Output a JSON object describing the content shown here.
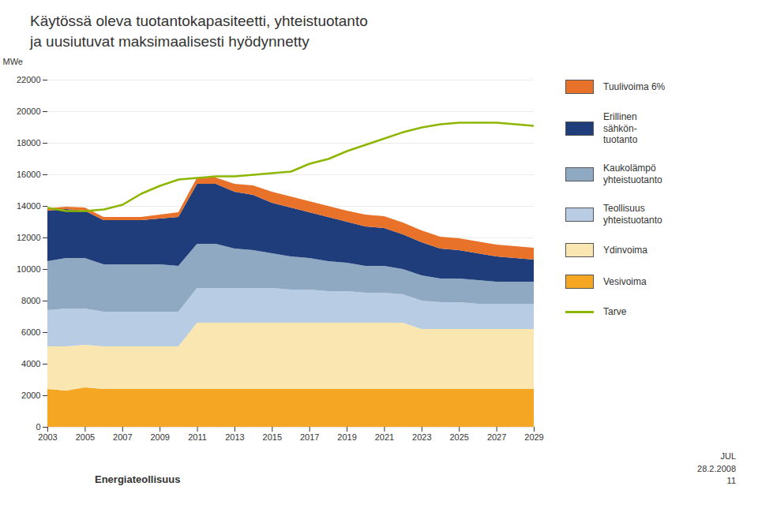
{
  "chart_data": {
    "type": "area",
    "title": "Käytössä oleva tuotantokapasiteetti, yhteistuotanto\nja uusiutuvat maksimaalisesti hyödynnetty",
    "ylabel": "MWe",
    "x": [
      2003,
      2004,
      2005,
      2006,
      2007,
      2008,
      2009,
      2010,
      2011,
      2012,
      2013,
      2014,
      2015,
      2016,
      2017,
      2018,
      2019,
      2020,
      2021,
      2022,
      2023,
      2024,
      2025,
      2026,
      2027,
      2028,
      2029
    ],
    "series": [
      {
        "name": "Vesivoima",
        "color": "#F5A623",
        "values": [
          2400,
          2300,
          2500,
          2400,
          2400,
          2400,
          2400,
          2400,
          2400,
          2400,
          2400,
          2400,
          2400,
          2400,
          2400,
          2400,
          2400,
          2400,
          2400,
          2400,
          2400,
          2400,
          2400,
          2400,
          2400,
          2400,
          2400
        ]
      },
      {
        "name": "Ydinvoima",
        "color": "#FAE6B0",
        "values": [
          2700,
          2800,
          2700,
          2700,
          2700,
          2700,
          2700,
          2700,
          4200,
          4200,
          4200,
          4200,
          4200,
          4200,
          4200,
          4200,
          4200,
          4200,
          4200,
          4200,
          3800,
          3800,
          3800,
          3800,
          3800,
          3800,
          3800
        ]
      },
      {
        "name": "Teollisuus\nyhteistuotanto",
        "color": "#B8CCE4",
        "values": [
          2300,
          2400,
          2300,
          2200,
          2200,
          2200,
          2200,
          2200,
          2200,
          2200,
          2200,
          2200,
          2200,
          2100,
          2100,
          2000,
          2000,
          1900,
          1900,
          1800,
          1800,
          1700,
          1700,
          1600,
          1600,
          1600,
          1600
        ]
      },
      {
        "name": "Kaukolämpö\nyhteistuotanto",
        "color": "#8EA9C1",
        "values": [
          3100,
          3200,
          3200,
          3000,
          3000,
          3000,
          3000,
          2900,
          2800,
          2800,
          2500,
          2400,
          2200,
          2100,
          2000,
          1900,
          1800,
          1700,
          1700,
          1600,
          1600,
          1500,
          1500,
          1500,
          1400,
          1400,
          1400
        ]
      },
      {
        "name": "Erillinen\nsähkön-\ntuotanto",
        "color": "#1F3D7A",
        "values": [
          3200,
          3100,
          3000,
          2800,
          2800,
          2800,
          2900,
          3100,
          3800,
          3800,
          3600,
          3500,
          3200,
          3100,
          2900,
          2800,
          2600,
          2500,
          2400,
          2200,
          2100,
          1900,
          1800,
          1700,
          1600,
          1500,
          1400
        ]
      },
      {
        "name": "Tuulivoima 6%",
        "color": "#E8722A",
        "values": [
          150,
          150,
          200,
          200,
          200,
          200,
          250,
          300,
          400,
          400,
          500,
          600,
          700,
          700,
          700,
          700,
          700,
          750,
          750,
          750,
          750,
          750,
          750,
          750,
          750,
          750,
          750
        ]
      },
      {
        "name": "Tarve",
        "type": "line",
        "color": "#8DB600",
        "values": [
          13900,
          13700,
          13700,
          13800,
          14100,
          14800,
          15300,
          15700,
          15800,
          15900,
          15900,
          16000,
          16100,
          16200,
          16700,
          17000,
          17500,
          17900,
          18300,
          18700,
          19000,
          19200,
          19300,
          19300,
          19300,
          19200,
          19100
        ]
      }
    ],
    "stacked": true,
    "xlim": [
      2003,
      2029
    ],
    "xticks": [
      2003,
      2005,
      2007,
      2009,
      2011,
      2013,
      2015,
      2017,
      2019,
      2021,
      2023,
      2025,
      2027,
      2029
    ],
    "ylim": [
      0,
      22000
    ],
    "yticks": [
      0,
      2000,
      4000,
      6000,
      8000,
      10000,
      12000,
      14000,
      16000,
      18000,
      20000,
      22000
    ],
    "grid": true,
    "legend": "right",
    "annotations": [
      "Energiateollisuus",
      "JUL\n28.2.2008\n11"
    ]
  }
}
